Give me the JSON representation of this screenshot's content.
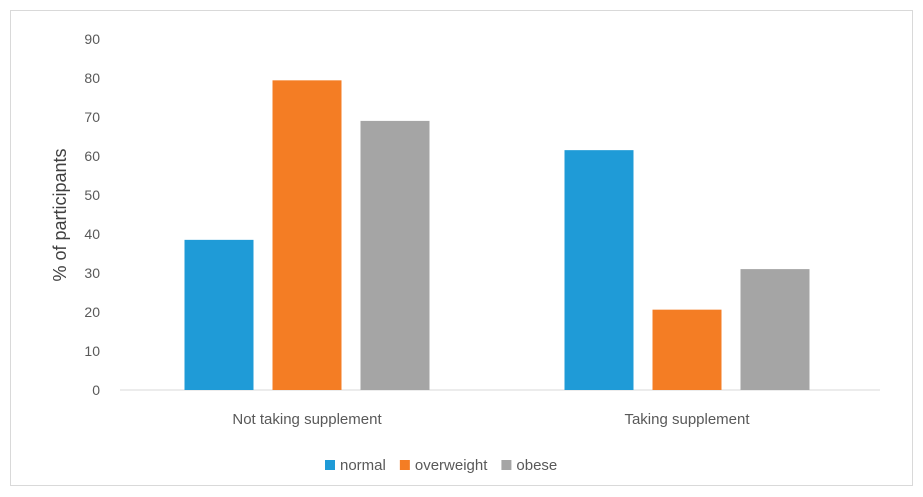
{
  "chart_data": {
    "type": "bar",
    "categories": [
      "Not taking supplement",
      "Taking supplement"
    ],
    "series": [
      {
        "name": "normal",
        "values": [
          38.5,
          61.5
        ],
        "color": "#1f9bd7"
      },
      {
        "name": "overweight",
        "values": [
          79.4,
          20.6
        ],
        "color": "#f47d24"
      },
      {
        "name": "obese",
        "values": [
          69.0,
          31.0
        ],
        "color": "#a5a5a5"
      }
    ],
    "title": "",
    "xlabel": "",
    "ylabel": "% of participants",
    "ylim": [
      0,
      90
    ],
    "yticks": [
      0,
      10,
      20,
      30,
      40,
      50,
      60,
      70,
      80,
      90
    ],
    "grid": false,
    "legend": "bottom"
  }
}
